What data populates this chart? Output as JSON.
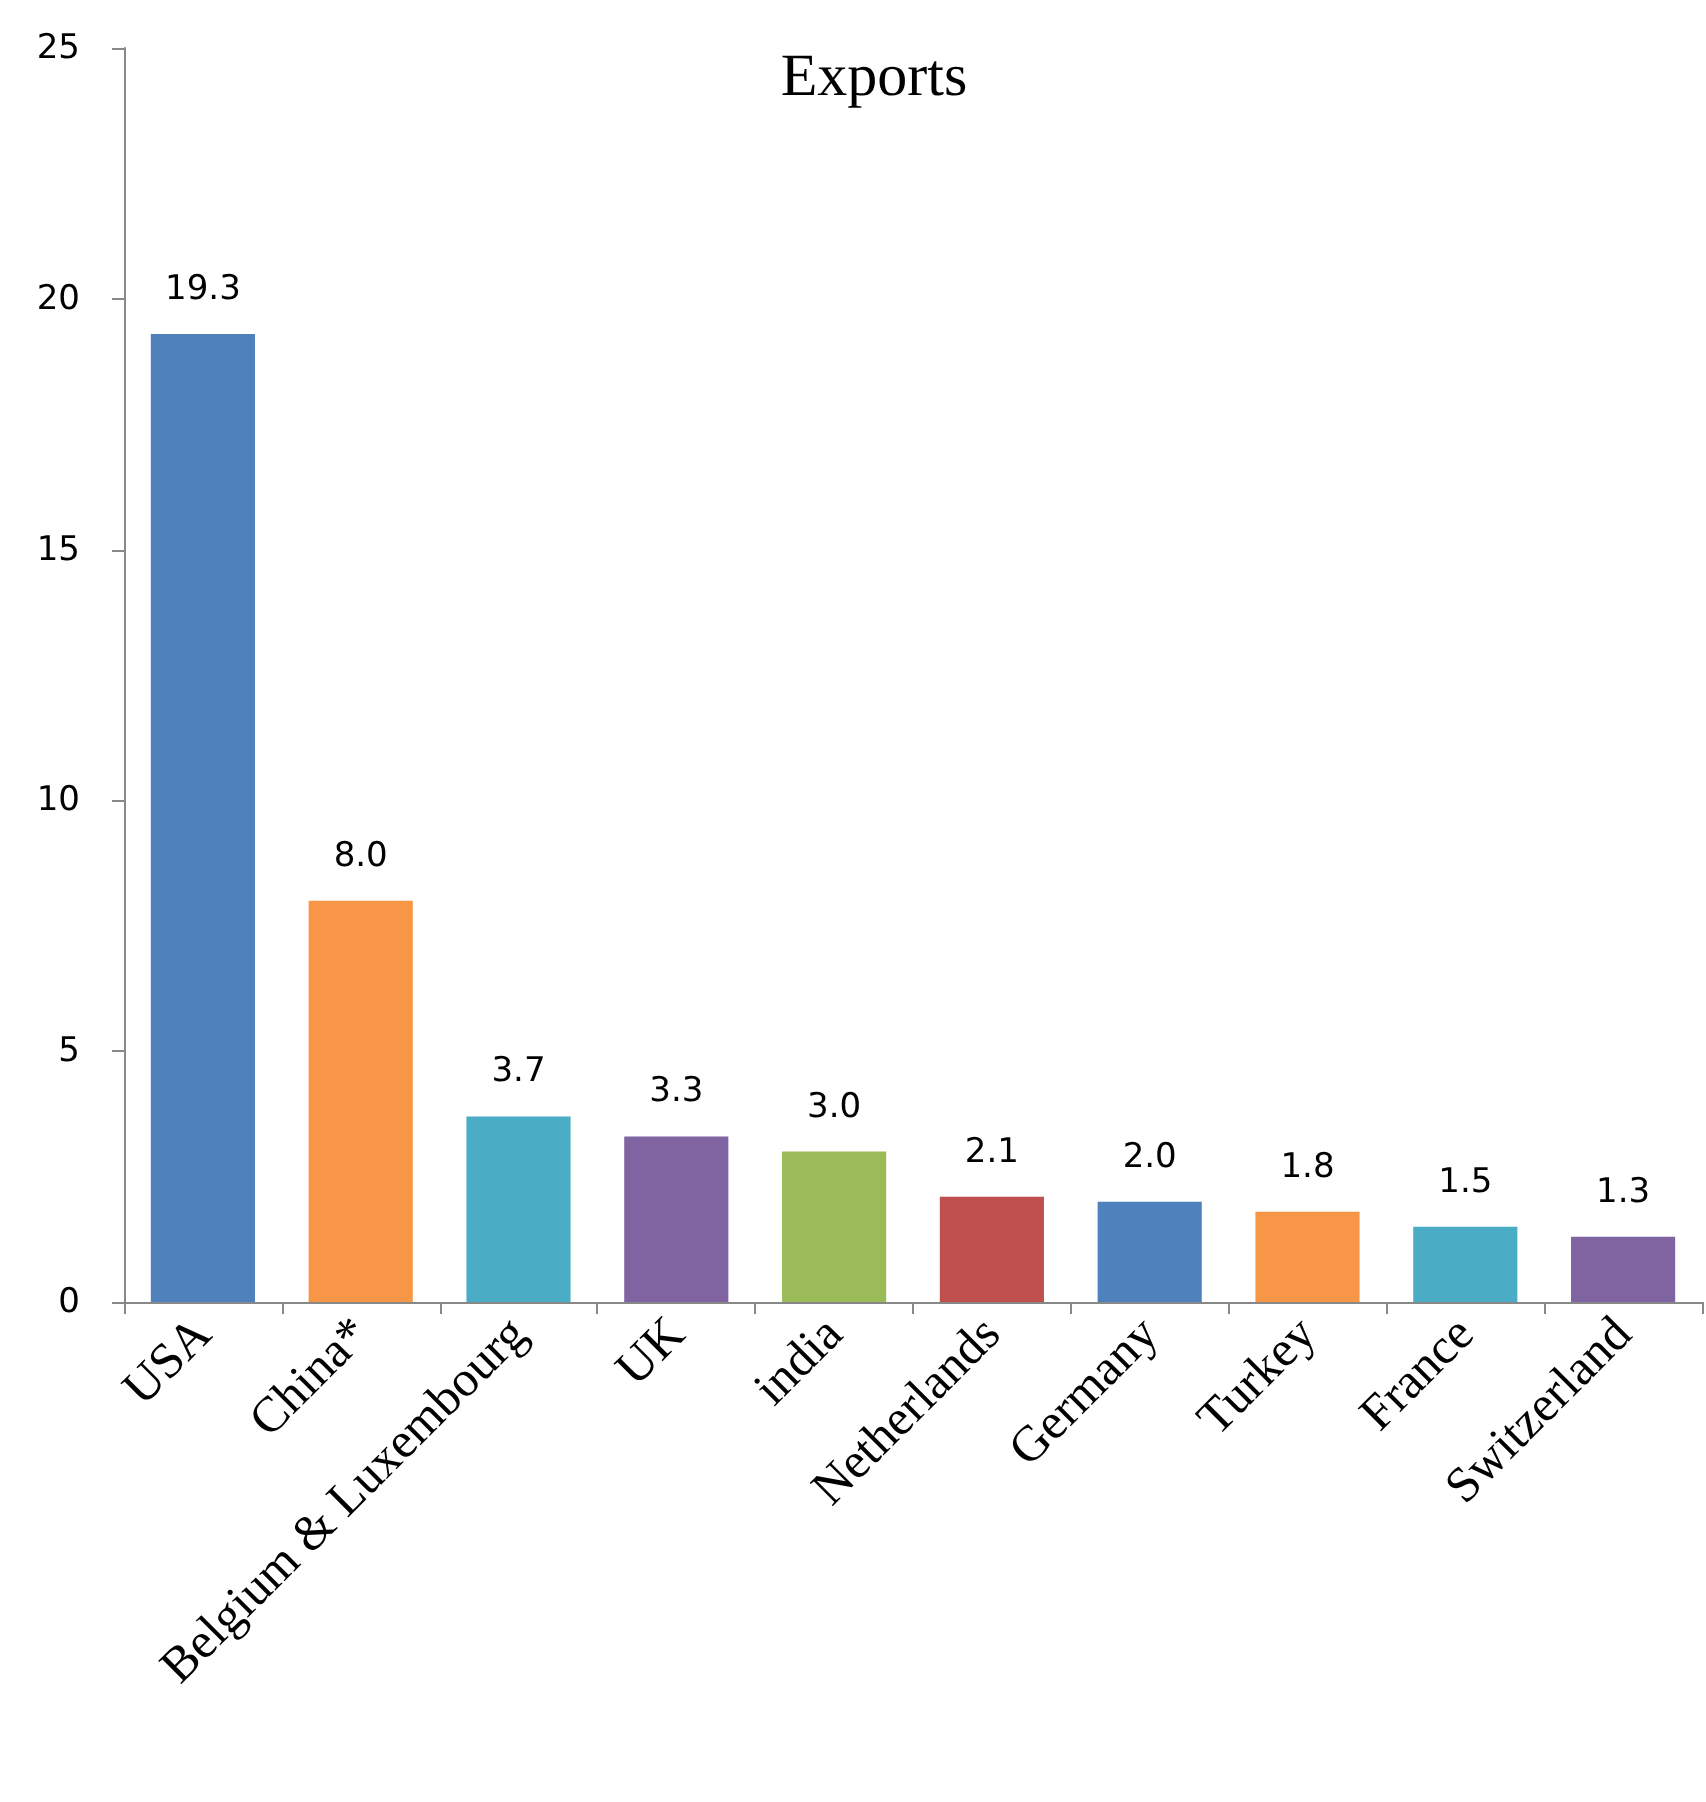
{
  "chart_data": {
    "type": "bar",
    "title": "Exports",
    "categories": [
      "USA",
      "China*",
      "Belgium & Luxembourg",
      "UK",
      "india",
      "Netherlands",
      "Germany",
      "Turkey",
      "France",
      "Switzerland"
    ],
    "values": [
      19.3,
      8.0,
      3.7,
      3.3,
      3.0,
      2.1,
      2.0,
      1.8,
      1.5,
      1.3
    ],
    "colors": [
      "#4f81bd",
      "#f79646",
      "#4bacc6",
      "#8064a2",
      "#9bbb59",
      "#c0504d",
      "#4f81bd",
      "#f79646",
      "#4bacc6",
      "#8064a2"
    ],
    "value_labels": [
      "19.3",
      "8.0",
      "3.7",
      "3.3",
      "3.0",
      "2.1",
      "2.0",
      "1.8",
      "1.5",
      "1.3"
    ],
    "ylim": [
      0,
      25
    ],
    "yticks": [
      0,
      5,
      10,
      15,
      20,
      25
    ],
    "grid": false
  }
}
